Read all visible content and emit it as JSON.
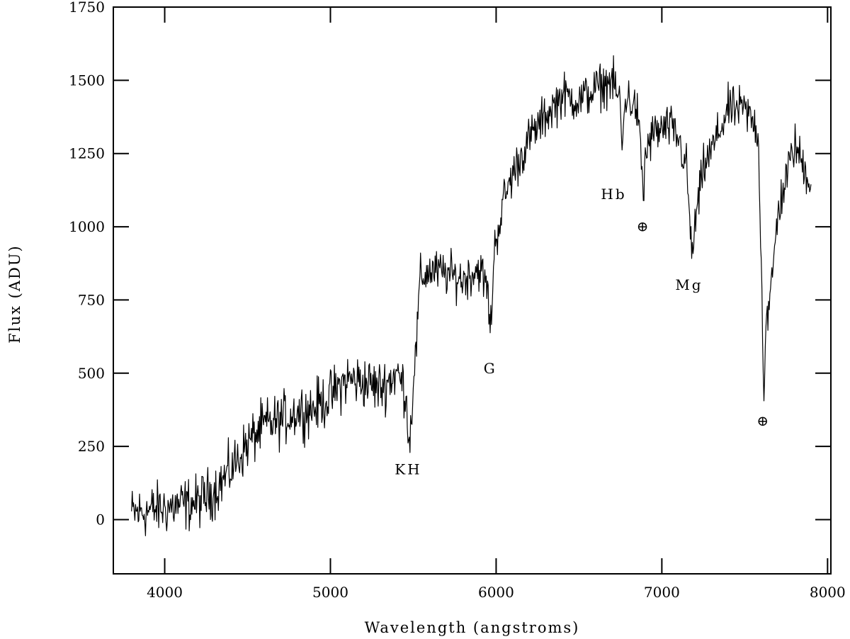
{
  "chart_data": {
    "type": "line",
    "title": "",
    "xlabel": "Wavelength (angstroms)",
    "ylabel": "Flux (ADU)",
    "xlim": [
      3690,
      8020
    ],
    "ylim": [
      -185,
      1750
    ],
    "xticks": [
      4000,
      5000,
      6000,
      7000,
      8000
    ],
    "yticks": [
      0,
      250,
      500,
      750,
      1000,
      1250,
      1500,
      1750
    ],
    "grid": false,
    "legend": "none",
    "line_color": "#000000",
    "series": [
      {
        "x_start": 3800,
        "x_end": 7900,
        "anchors": [
          [
            3800,
            20
          ],
          [
            3900,
            30
          ],
          [
            4000,
            40
          ],
          [
            4100,
            50
          ],
          [
            4200,
            60
          ],
          [
            4300,
            100
          ],
          [
            4400,
            170
          ],
          [
            4500,
            260
          ],
          [
            4600,
            320
          ],
          [
            4700,
            340
          ],
          [
            4800,
            370
          ],
          [
            4900,
            380
          ],
          [
            5000,
            420
          ],
          [
            5100,
            480
          ],
          [
            5200,
            470
          ],
          [
            5300,
            450
          ],
          [
            5400,
            500
          ],
          [
            5450,
            450
          ],
          [
            5480,
            260
          ],
          [
            5500,
            480
          ],
          [
            5520,
            600
          ],
          [
            5540,
            820
          ],
          [
            5600,
            850
          ],
          [
            5700,
            840
          ],
          [
            5800,
            820
          ],
          [
            5900,
            860
          ],
          [
            5950,
            780
          ],
          [
            5965,
            630
          ],
          [
            5990,
            930
          ],
          [
            6050,
            1100
          ],
          [
            6100,
            1180
          ],
          [
            6200,
            1300
          ],
          [
            6300,
            1380
          ],
          [
            6400,
            1450
          ],
          [
            6500,
            1430
          ],
          [
            6600,
            1470
          ],
          [
            6700,
            1500
          ],
          [
            6750,
            1420
          ],
          [
            6760,
            1250
          ],
          [
            6780,
            1450
          ],
          [
            6850,
            1400
          ],
          [
            6880,
            1200
          ],
          [
            6890,
            1080
          ],
          [
            6900,
            1250
          ],
          [
            6950,
            1320
          ],
          [
            7050,
            1340
          ],
          [
            7100,
            1300
          ],
          [
            7150,
            1200
          ],
          [
            7180,
            900
          ],
          [
            7200,
            1000
          ],
          [
            7250,
            1200
          ],
          [
            7300,
            1260
          ],
          [
            7400,
            1400
          ],
          [
            7500,
            1400
          ],
          [
            7580,
            1330
          ],
          [
            7600,
            900
          ],
          [
            7615,
            420
          ],
          [
            7630,
            700
          ],
          [
            7650,
            720
          ],
          [
            7700,
            1050
          ],
          [
            7800,
            1280
          ],
          [
            7900,
            1150
          ]
        ]
      }
    ],
    "annotations": [
      {
        "text": "KH",
        "x": 5470,
        "y": 155
      },
      {
        "text": "G",
        "x": 5965,
        "y": 500
      },
      {
        "text": "Hb",
        "x": 6710,
        "y": 1095
      },
      {
        "text": "Mg",
        "x": 7165,
        "y": 785
      },
      {
        "text": "⊕",
        "x": 6890,
        "y": 985
      },
      {
        "text": "⊕",
        "x": 7615,
        "y": 320
      }
    ]
  }
}
